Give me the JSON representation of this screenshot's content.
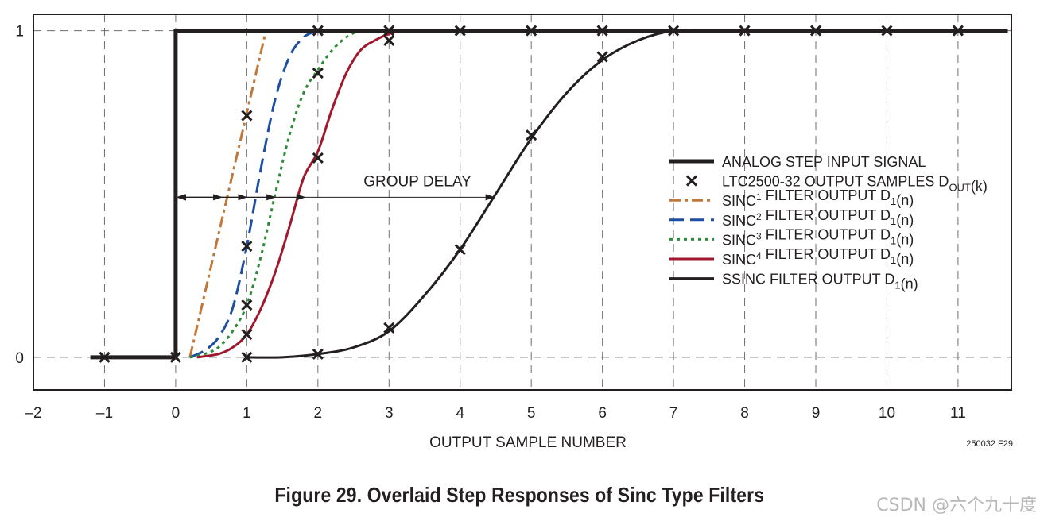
{
  "chart_data": {
    "type": "line",
    "xlabel": "OUTPUT SAMPLE NUMBER",
    "x_ticks": [
      "–2",
      "–1",
      "0",
      "1",
      "2",
      "3",
      "4",
      "5",
      "6",
      "7",
      "8",
      "9",
      "10",
      "11"
    ],
    "y_ticks": [
      "0",
      "1"
    ],
    "xlim": [
      -2,
      11.75
    ],
    "ylim": [
      -0.1,
      1.05
    ],
    "grid": "dashed",
    "legend_position": "center-right",
    "annotation": "GROUP DELAY",
    "figure_id": "250032 F29",
    "legend": [
      {
        "key": "step",
        "text": "ANALOG STEP INPUT SIGNAL"
      },
      {
        "key": "samples",
        "text": "LTC2500-32 OUTPUT SAMPLES D",
        "sub": "OUT",
        "tail": "(k)"
      },
      {
        "key": "sinc1",
        "text": "SINC",
        "sup": "1",
        "mid": " FILTER OUTPUT D",
        "sub": "1",
        "tail": "(n)"
      },
      {
        "key": "sinc2",
        "text": "SINC",
        "sup": "2",
        "mid": " FILTER OUTPUT D",
        "sub": "1",
        "tail": "(n)"
      },
      {
        "key": "sinc3",
        "text": "SINC",
        "sup": "3",
        "mid": " FILTER OUTPUT D",
        "sub": "1",
        "tail": "(n)"
      },
      {
        "key": "sinc4",
        "text": "SINC",
        "sup": "4",
        "mid": " FILTER OUTPUT D",
        "sub": "1",
        "tail": "(n)"
      },
      {
        "key": "ssinc",
        "text": "SSINC FILTER OUTPUT D",
        "sub": "1",
        "tail": "(n)"
      }
    ],
    "series": [
      {
        "key": "step",
        "color": "#231f20",
        "dash": "solid",
        "points": [
          [
            -1.2,
            0
          ],
          [
            0,
            0
          ],
          [
            0,
            1
          ],
          [
            11.7,
            1
          ]
        ]
      },
      {
        "key": "sinc1",
        "color": "#c0773a",
        "dash": "dashdot",
        "points": [
          [
            0.2,
            0
          ],
          [
            1.27,
            1
          ]
        ]
      },
      {
        "key": "sinc2",
        "color": "#1f4fa0",
        "dash": "dash",
        "points": [
          [
            0.2,
            0
          ],
          [
            0.4,
            0.02
          ],
          [
            0.6,
            0.06
          ],
          [
            0.8,
            0.15
          ],
          [
            1.0,
            0.34
          ],
          [
            1.2,
            0.58
          ],
          [
            1.4,
            0.79
          ],
          [
            1.6,
            0.92
          ],
          [
            1.8,
            0.98
          ],
          [
            2.0,
            1.0
          ]
        ]
      },
      {
        "key": "sinc3",
        "color": "#2e8b3a",
        "dash": "dot",
        "points": [
          [
            0.2,
            0
          ],
          [
            0.4,
            0.01
          ],
          [
            0.6,
            0.03
          ],
          [
            0.8,
            0.08
          ],
          [
            1.0,
            0.16
          ],
          [
            1.2,
            0.31
          ],
          [
            1.4,
            0.5
          ],
          [
            1.6,
            0.68
          ],
          [
            1.8,
            0.81
          ],
          [
            2.0,
            0.88
          ],
          [
            2.2,
            0.94
          ],
          [
            2.4,
            0.98
          ],
          [
            2.6,
            1.0
          ],
          [
            2.8,
            1.0
          ]
        ]
      },
      {
        "key": "sinc4",
        "color": "#a0182e",
        "dash": "solid",
        "points": [
          [
            0.3,
            0
          ],
          [
            0.6,
            0.01
          ],
          [
            0.8,
            0.03
          ],
          [
            1.0,
            0.07
          ],
          [
            1.2,
            0.15
          ],
          [
            1.4,
            0.26
          ],
          [
            1.6,
            0.4
          ],
          [
            1.8,
            0.55
          ],
          [
            2.0,
            0.63
          ],
          [
            2.2,
            0.76
          ],
          [
            2.4,
            0.87
          ],
          [
            2.6,
            0.94
          ],
          [
            2.8,
            0.97
          ],
          [
            3.0,
            0.99
          ],
          [
            3.2,
            1.0
          ],
          [
            3.6,
            1.0
          ]
        ]
      },
      {
        "key": "ssinc",
        "color": "#231f20",
        "dash": "solid",
        "points": [
          [
            1.0,
            0
          ],
          [
            1.5,
            0.0
          ],
          [
            2.0,
            0.01
          ],
          [
            2.5,
            0.03
          ],
          [
            3.0,
            0.08
          ],
          [
            3.5,
            0.19
          ],
          [
            4.0,
            0.33
          ],
          [
            4.5,
            0.5
          ],
          [
            5.0,
            0.67
          ],
          [
            5.5,
            0.81
          ],
          [
            6.0,
            0.91
          ],
          [
            6.5,
            0.97
          ],
          [
            7.0,
            1.0
          ],
          [
            7.5,
            1.0
          ]
        ]
      }
    ],
    "samples": [
      [
        -1,
        0
      ],
      [
        0,
        0
      ],
      [
        1,
        0
      ],
      [
        1,
        0.07
      ],
      [
        1,
        0.16
      ],
      [
        1,
        0.34
      ],
      [
        1,
        0.74
      ],
      [
        2,
        0.01
      ],
      [
        2,
        0.61
      ],
      [
        2,
        0.87
      ],
      [
        2,
        1.0
      ],
      [
        3,
        0.09
      ],
      [
        3,
        0.97
      ],
      [
        3,
        1.0
      ],
      [
        4,
        0.33
      ],
      [
        4,
        1.0
      ],
      [
        5,
        0.68
      ],
      [
        5,
        1.0
      ],
      [
        6,
        0.92
      ],
      [
        6,
        1.0
      ],
      [
        7,
        1.0
      ],
      [
        8,
        1.0
      ],
      [
        9,
        1.0
      ],
      [
        10,
        1.0
      ],
      [
        11,
        1.0
      ]
    ],
    "group_delay_arrows": {
      "y": 0.49,
      "segments": [
        [
          0,
          0.65
        ],
        [
          0,
          1.0
        ],
        [
          0,
          1.4
        ],
        [
          0,
          1.82
        ],
        [
          0,
          4.48
        ]
      ]
    }
  },
  "caption": "Figure 29. Overlaid Step Responses of Sinc Type Filters",
  "watermark": "CSDN @六个九十度"
}
